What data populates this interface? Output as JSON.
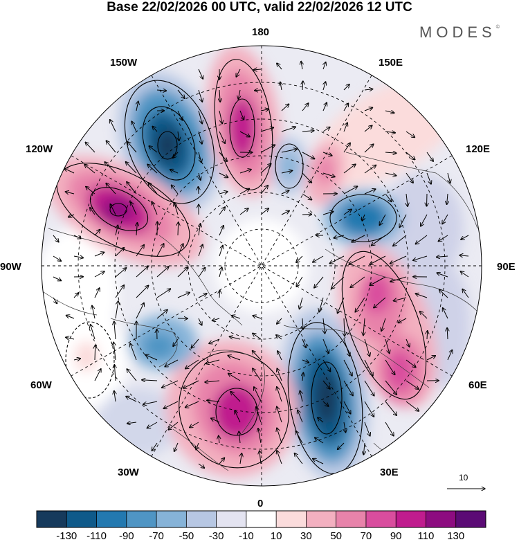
{
  "title": "Base 22/02/2026 00 UTC, valid 22/02/2026 12 UTC",
  "brand": "MODES",
  "brand_mark": "©",
  "longitude_labels": {
    "n180": "180",
    "w150": "150W",
    "e150": "150E",
    "w120": "120W",
    "e120": "120E",
    "w90": "90W",
    "e90": "90E",
    "w60": "60W",
    "e60": "60E",
    "w30": "30W",
    "e30": "30E",
    "zero": "0"
  },
  "reference_vector": "10",
  "colorbar": {
    "labels": [
      "-130",
      "-110",
      "-90",
      "-70",
      "-50",
      "-30",
      "-10",
      "10",
      "30",
      "50",
      "70",
      "90",
      "110",
      "130"
    ],
    "colors": [
      "#163a5c",
      "#0f5a8a",
      "#2379b0",
      "#4f95c4",
      "#86b3d8",
      "#b7c7e3",
      "#e4e4f1",
      "#ffffff",
      "#fbdcdc",
      "#f3b0c0",
      "#e883aa",
      "#d94d9e",
      "#c01c8e",
      "#8d0c80",
      "#5b0b75"
    ]
  },
  "map_features": {
    "anomaly_centers": [
      {
        "sign": "negative",
        "level": "-130"
      },
      {
        "sign": "positive",
        "level": "130"
      },
      {
        "sign": "positive",
        "level": "110"
      },
      {
        "sign": "negative",
        "level": "-70"
      },
      {
        "sign": "positive",
        "level": "50"
      },
      {
        "sign": "negative",
        "level": "-90"
      },
      {
        "sign": "positive",
        "level": "90"
      },
      {
        "sign": "negative",
        "level": "-130"
      },
      {
        "sign": "positive",
        "level": "110"
      },
      {
        "sign": "negative",
        "level": "-50"
      }
    ]
  }
}
